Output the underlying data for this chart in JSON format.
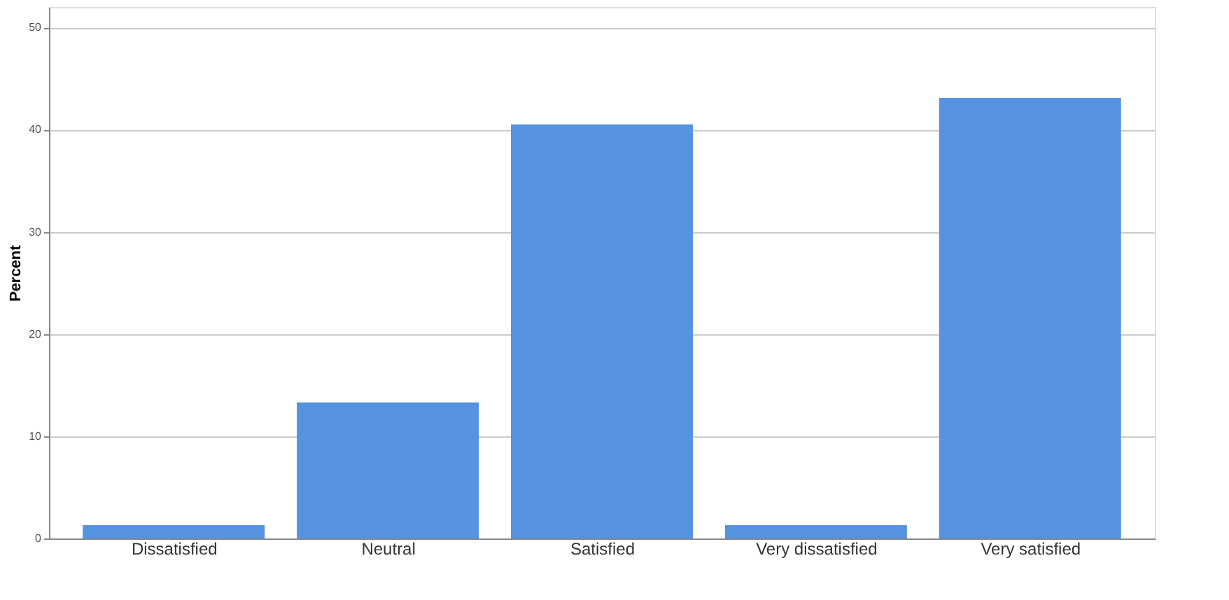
{
  "chart_data": {
    "type": "bar",
    "ylabel": "Percent",
    "categories": [
      "Dissatisfied",
      "Neutral",
      "Satisfied",
      "Very dissatisfied",
      "Very satisfied"
    ],
    "values": [
      1.3,
      13.3,
      40.5,
      1.3,
      43.1
    ],
    "color": "#5592e0",
    "ylim": [
      0,
      52
    ],
    "yticks": [
      0,
      10,
      20,
      30,
      40,
      50
    ],
    "grid": "y"
  }
}
